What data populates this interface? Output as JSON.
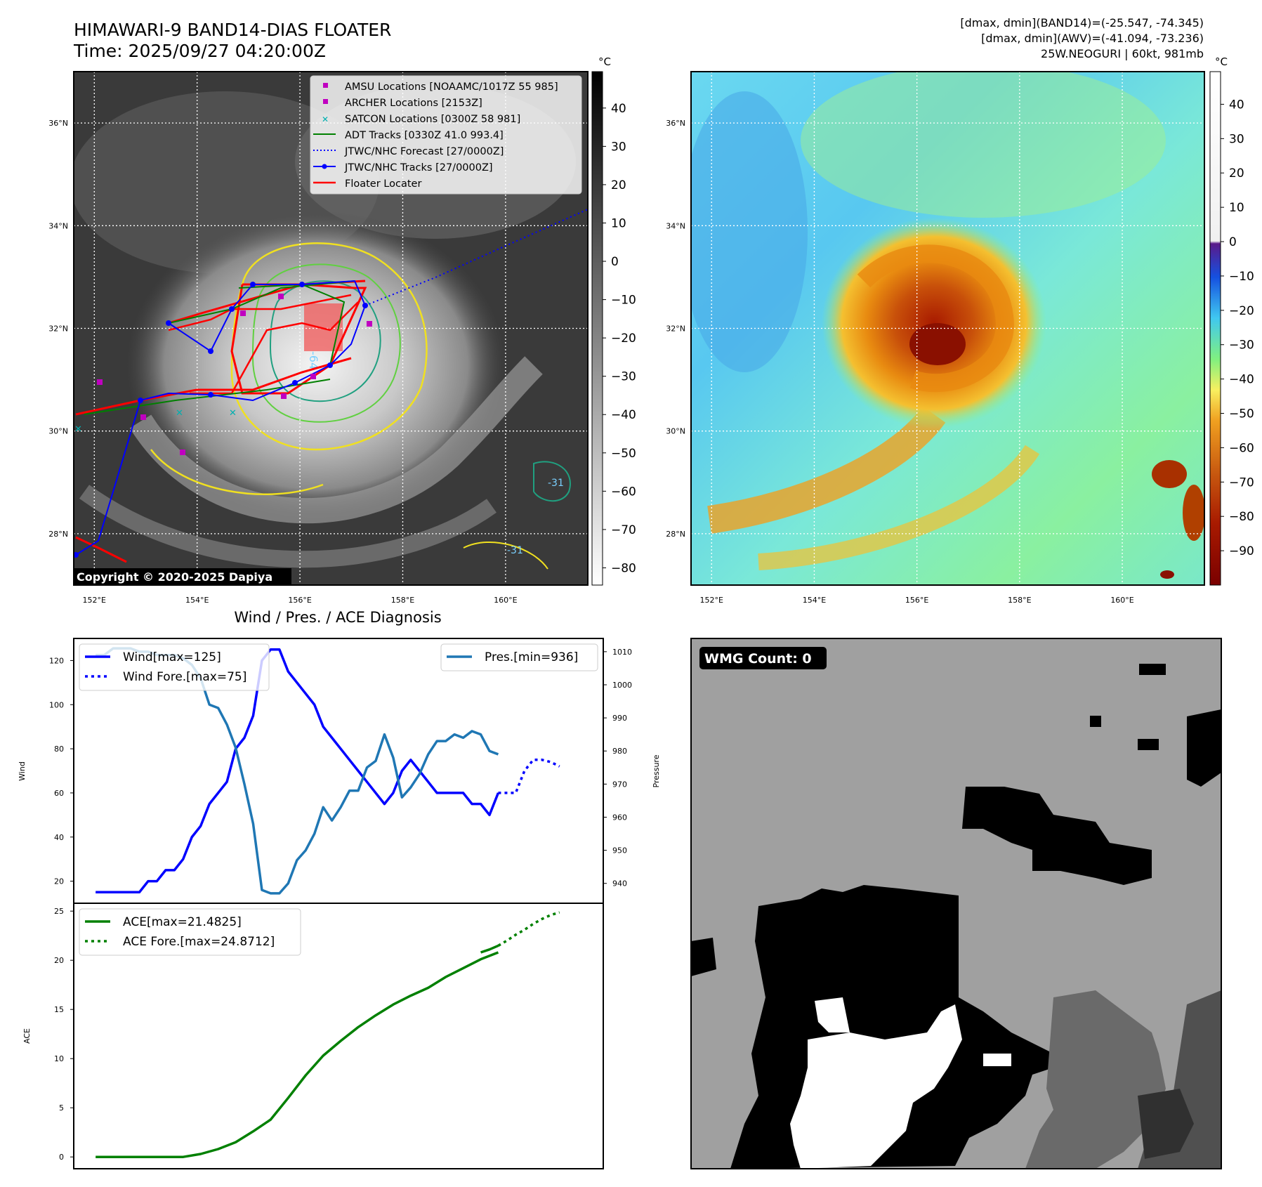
{
  "header": {
    "title": "HIMAWARI-9 BAND14-DIAS FLOATER",
    "time": "Time: 2025/09/27 04:20:00Z",
    "stats_band14": "[dmax, dmin](BAND14)=(-25.547, -74.345)",
    "stats_awv": "[dmax, dmin](AWV)=(-41.094, -73.236)",
    "storm": "25W.NEOGURI | 60kt, 981mb"
  },
  "map_axes": {
    "lat_ticks": [
      "36°N",
      "34°N",
      "32°N",
      "30°N",
      "28°N"
    ],
    "lon_ticks": [
      "152°E",
      "154°E",
      "156°E",
      "158°E",
      "160°E"
    ],
    "lat_range": [
      27,
      37
    ],
    "lon_range": [
      151.6,
      161.6
    ]
  },
  "ir_panel": {
    "colorbar_unit": "°C",
    "colorbar_ticks": [
      "40",
      "30",
      "20",
      "10",
      "0",
      "−10",
      "−20",
      "−30",
      "−40",
      "−50",
      "−60",
      "−70",
      "−80"
    ],
    "copyright": "Copyright © 2020-2025 Dapiya",
    "contour_labels": [
      "-64",
      "-31",
      "-31"
    ],
    "legend": [
      {
        "label": "AMSU Locations [NOAAMC/1017Z 55 985]",
        "color": "#c000c0"
      },
      {
        "label": "ARCHER Locations [2153Z]",
        "color": "#c000c0"
      },
      {
        "label": "SATCON Locations [0300Z 58 981]",
        "color": "#00b0b0"
      },
      {
        "label": "ADT Tracks [0330Z 41.0 993.4]",
        "color": "#008000"
      },
      {
        "label": "JTWC/NHC Forecast [27/0000Z]",
        "color": "#0000ff"
      },
      {
        "label": "JTWC/NHC Tracks [27/0000Z]",
        "color": "#0000ff"
      },
      {
        "label": "Floater Locater",
        "color": "#ff0000"
      }
    ]
  },
  "awv_panel": {
    "colorbar_unit": "°C",
    "colorbar_ticks": [
      "40",
      "30",
      "20",
      "10",
      "0",
      "−10",
      "−20",
      "−30",
      "−40",
      "−50",
      "−60",
      "−70",
      "−80",
      "−90"
    ]
  },
  "wmg_panel": {
    "label": "WMG Count: 0"
  },
  "colors": {
    "wind": "#0000ff",
    "pressure": "#1f77b4",
    "ace": "#008000",
    "floater": "#ff0000"
  },
  "chart_data": [
    {
      "type": "line",
      "title": "Wind / Pres. / ACE Diagnosis",
      "ylabel": "Wind",
      "y2label": "Pressure",
      "ylim": [
        10,
        130
      ],
      "y2lim": [
        934,
        1014
      ],
      "yticks": [
        20,
        40,
        60,
        80,
        100,
        120
      ],
      "y2ticks": [
        940,
        950,
        960,
        970,
        980,
        990,
        1000,
        1010
      ],
      "legend_left": [
        "Wind[max=125]",
        "Wind Fore.[max=75]"
      ],
      "legend_right": [
        "Pres.[min=936]"
      ],
      "series": [
        {
          "name": "Wind",
          "x": [
            0,
            1,
            2,
            3,
            4,
            5,
            6,
            7,
            8,
            9,
            10,
            11,
            12,
            13,
            14,
            15,
            16,
            17,
            18,
            19,
            20,
            21,
            22,
            23,
            24,
            25,
            26,
            27,
            28,
            29,
            30,
            31,
            32,
            33,
            34,
            35,
            36,
            37,
            38,
            39,
            40,
            41,
            42,
            43,
            44,
            45,
            46
          ],
          "values": [
            15,
            15,
            15,
            15,
            15,
            15,
            20,
            20,
            25,
            25,
            30,
            40,
            45,
            55,
            60,
            65,
            80,
            85,
            95,
            120,
            125,
            125,
            115,
            110,
            105,
            100,
            90,
            85,
            80,
            75,
            70,
            65,
            60,
            55,
            60,
            70,
            75,
            70,
            65,
            60,
            60,
            60,
            60,
            55,
            55,
            50,
            60
          ]
        },
        {
          "name": "Wind Fore.",
          "style": "dotted",
          "x": [
            46,
            47,
            48,
            49,
            50,
            51,
            52,
            53
          ],
          "values": [
            60,
            60,
            60,
            70,
            75,
            75,
            74,
            72
          ]
        },
        {
          "name": "Pres.",
          "axis": "right",
          "x": [
            0,
            1,
            2,
            3,
            4,
            5,
            6,
            7,
            8,
            9,
            10,
            11,
            12,
            13,
            14,
            15,
            16,
            17,
            18,
            19,
            20,
            21,
            22,
            23,
            24,
            25,
            26,
            27,
            28,
            29,
            30,
            31,
            32,
            33,
            34,
            35,
            36,
            37,
            38,
            39,
            40,
            41,
            42,
            43,
            44,
            45,
            46
          ],
          "values": [
            1009,
            1009,
            1011,
            1011,
            1011,
            1010,
            1010,
            1009,
            1009,
            1009,
            1008,
            1006,
            1002,
            994,
            993,
            988,
            981,
            970,
            958,
            938,
            937,
            937,
            940,
            947,
            950,
            955,
            963,
            959,
            963,
            968,
            968,
            975,
            977,
            985,
            978,
            966,
            969,
            973,
            979,
            983,
            983,
            985,
            984,
            986,
            985,
            980,
            979
          ]
        }
      ],
      "x_range": [
        -2.5,
        58
      ]
    },
    {
      "type": "line",
      "ylabel": "ACE",
      "ylim": [
        -1.2,
        25.8
      ],
      "yticks": [
        0,
        5,
        10,
        15,
        20,
        25
      ],
      "legend": [
        "ACE[max=21.4825]",
        "ACE Fore.[max=24.8712]"
      ],
      "series": [
        {
          "name": "ACE",
          "x": [
            0,
            2,
            4,
            6,
            8,
            10,
            12,
            14,
            16,
            18,
            20,
            22,
            24,
            26,
            28,
            30,
            32,
            34,
            36,
            38,
            40,
            42,
            44,
            46
          ],
          "values": [
            0,
            0,
            0,
            0,
            0,
            0,
            0.3,
            0.8,
            1.5,
            2.6,
            3.8,
            6,
            8.3,
            10.3,
            11.8,
            13.2,
            14.4,
            15.5,
            16.4,
            17.2,
            18.3,
            19.2,
            20.1,
            20.8
          ]
        },
        {
          "name": "ACE",
          "x": [
            44,
            45,
            46
          ],
          "values": [
            20.8,
            21.1,
            21.4825
          ]
        },
        {
          "name": "ACE Fore.",
          "style": "dotted",
          "x": [
            46,
            47,
            48,
            49,
            50,
            51,
            52,
            53
          ],
          "values": [
            21.4825,
            22.0,
            22.6,
            23.1,
            23.7,
            24.2,
            24.6,
            24.8712
          ]
        }
      ],
      "x_range": [
        -2.5,
        58
      ]
    }
  ]
}
